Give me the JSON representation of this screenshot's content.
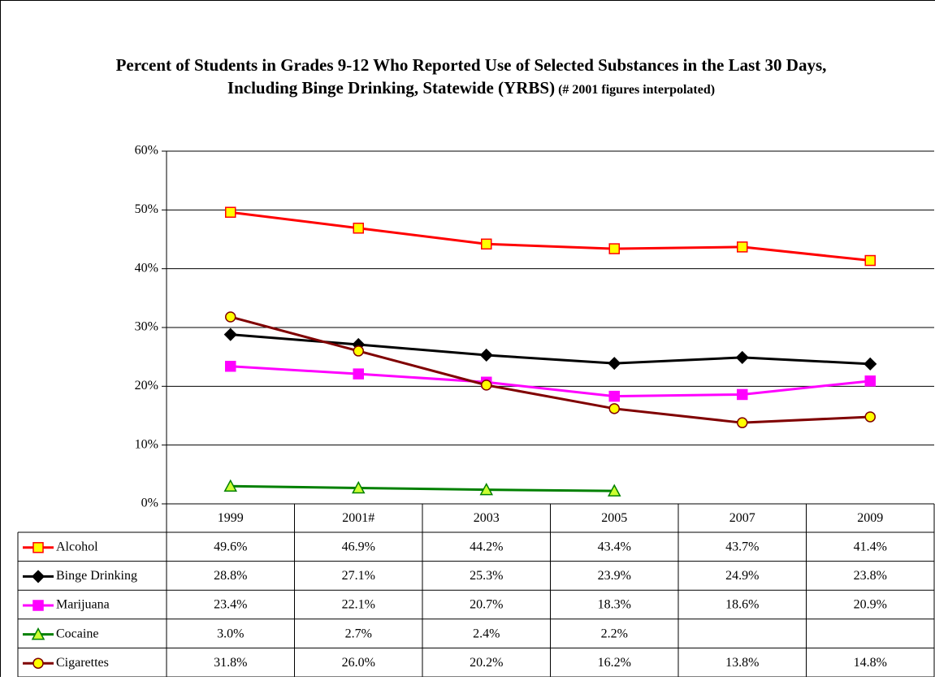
{
  "chart_data": {
    "type": "line",
    "title": "Percent of Students in Grades 9-12 Who Reported Use of Selected Substances in the Last 30 Days, Including Binge Drinking, Statewide (YRBS)",
    "subtitle": "(# 2001 figures interpolated)",
    "categories": [
      "1999",
      "2001#",
      "2003",
      "2005",
      "2007",
      "2009"
    ],
    "ylim": [
      0,
      60
    ],
    "yticks": [
      {
        "value": 0,
        "label": "0%"
      },
      {
        "value": 10,
        "label": "10%"
      },
      {
        "value": 20,
        "label": "20%"
      },
      {
        "value": 30,
        "label": "30%"
      },
      {
        "value": 40,
        "label": "40%"
      },
      {
        "value": 50,
        "label": "50%"
      },
      {
        "value": 60,
        "label": "60%"
      }
    ],
    "grid": true,
    "series": [
      {
        "name": "Alcohol",
        "color": "#ff0000",
        "marker": "square",
        "marker_fill": "#ffff00",
        "values": [
          49.6,
          46.9,
          44.2,
          43.4,
          43.7,
          41.4
        ],
        "value_labels": [
          "49.6%",
          "46.9%",
          "44.2%",
          "43.4%",
          "43.7%",
          "41.4%"
        ]
      },
      {
        "name": "Binge Drinking",
        "color": "#000000",
        "marker": "diamond",
        "marker_fill": "#000000",
        "values": [
          28.8,
          27.1,
          25.3,
          23.9,
          24.9,
          23.8
        ],
        "value_labels": [
          "28.8%",
          "27.1%",
          "25.3%",
          "23.9%",
          "24.9%",
          "23.8%"
        ]
      },
      {
        "name": "Marijuana",
        "color": "#ff00ff",
        "marker": "square",
        "marker_fill": "#ff00ff",
        "values": [
          23.4,
          22.1,
          20.7,
          18.3,
          18.6,
          20.9
        ],
        "value_labels": [
          "23.4%",
          "22.1%",
          "20.7%",
          "18.3%",
          "18.6%",
          "20.9%"
        ]
      },
      {
        "name": "Cocaine",
        "color": "#008000",
        "marker": "triangle",
        "marker_fill": "#ccff33",
        "values": [
          3.0,
          2.7,
          2.4,
          2.2,
          null,
          null
        ],
        "value_labels": [
          "3.0%",
          "2.7%",
          "2.4%",
          "2.2%",
          null,
          null
        ]
      },
      {
        "name": "Cigarettes",
        "color": "#800000",
        "marker": "circle",
        "marker_fill": "#ffff00",
        "values": [
          31.8,
          26.0,
          20.2,
          16.2,
          13.8,
          14.8
        ],
        "value_labels": [
          "31.8%",
          "26.0%",
          "20.2%",
          "16.2%",
          "13.8%",
          "14.8%"
        ]
      }
    ]
  }
}
